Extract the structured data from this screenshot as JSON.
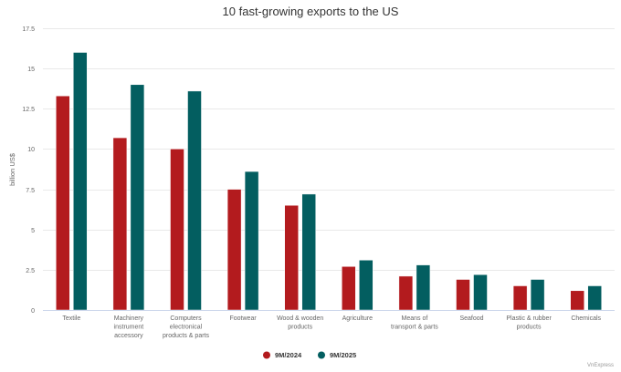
{
  "chart_data": {
    "type": "bar",
    "title": "10 fast-growing exports to the US",
    "xlabel": "",
    "ylabel": "billion US$",
    "ylim": [
      0,
      17.5
    ],
    "yticks": [
      0,
      2.5,
      5,
      7.5,
      10,
      12.5,
      15,
      17.5
    ],
    "ytick_labels": [
      "0",
      "2.5",
      "5",
      "7.5",
      "10",
      "12.5",
      "15",
      "17.5"
    ],
    "grid": true,
    "legend_position": "bottom-center",
    "categories": [
      [
        "Textile"
      ],
      [
        "Machinery",
        "instrument",
        "accessory"
      ],
      [
        "Computers",
        "electronical",
        "products & parts"
      ],
      [
        "Footwear"
      ],
      [
        "Wood & wooden",
        "products"
      ],
      [
        "Agriculture"
      ],
      [
        "Means of",
        "transport & parts"
      ],
      [
        "Seafood"
      ],
      [
        "Plastic & rubber",
        "products"
      ],
      [
        "Chemicals"
      ]
    ],
    "series": [
      {
        "name": "9M/2024",
        "color": "#b31b1e",
        "values": [
          13.3,
          10.7,
          10.0,
          7.5,
          6.5,
          2.7,
          2.1,
          1.9,
          1.5,
          1.2
        ]
      },
      {
        "name": "9M/2025",
        "color": "#035e60",
        "values": [
          16.0,
          14.0,
          13.6,
          8.6,
          7.2,
          3.1,
          2.8,
          2.2,
          1.9,
          1.5
        ]
      }
    ]
  },
  "credit": "VnExpress"
}
